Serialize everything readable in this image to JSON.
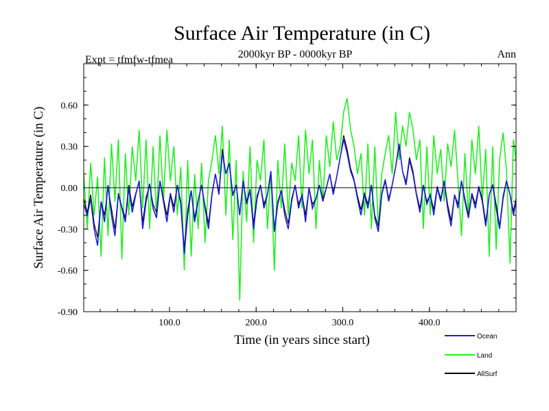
{
  "chart_data": {
    "type": "line",
    "title": "Surface Air Temperature (in C)",
    "subtitle": "2000kyr BP - 0000kyr BP",
    "left_label": "Expt = tfmfw-tfmea",
    "right_label": "Ann",
    "xlabel": "Time (in years since start)",
    "ylabel": "Surface Air Temperature (in C)",
    "xlim": [
      1,
      500
    ],
    "ylim": [
      -0.9,
      0.9
    ],
    "x_ticks": [
      100,
      200,
      300,
      400
    ],
    "x_tick_labels": [
      "100.0",
      "200.0",
      "300.0",
      "400.0"
    ],
    "y_ticks": [
      -0.9,
      -0.6,
      -0.3,
      0.0,
      0.3,
      0.6
    ],
    "y_tick_labels": [
      "-0.90",
      "-0.60",
      "-0.30",
      "0.00",
      "0.30",
      "0.60"
    ],
    "zero_line": true,
    "series": [
      {
        "name": "Ocean",
        "color": "#1a1adc",
        "x": [
          1,
          5,
          9,
          13,
          17,
          21,
          25,
          29,
          33,
          37,
          41,
          45,
          49,
          53,
          57,
          61,
          65,
          69,
          73,
          77,
          81,
          85,
          89,
          93,
          97,
          101,
          105,
          109,
          113,
          117,
          121,
          125,
          129,
          133,
          137,
          141,
          145,
          149,
          153,
          157,
          161,
          165,
          169,
          173,
          177,
          181,
          185,
          189,
          193,
          197,
          201,
          205,
          209,
          213,
          217,
          221,
          225,
          229,
          233,
          237,
          241,
          245,
          249,
          253,
          257,
          261,
          265,
          269,
          273,
          277,
          281,
          285,
          289,
          293,
          297,
          301,
          305,
          309,
          313,
          317,
          321,
          325,
          329,
          333,
          337,
          341,
          345,
          349,
          353,
          357,
          361,
          365,
          369,
          373,
          377,
          381,
          385,
          389,
          393,
          397,
          401,
          405,
          409,
          413,
          417,
          421,
          425,
          429,
          433,
          437,
          441,
          445,
          449,
          453,
          457,
          461,
          465,
          469,
          473,
          477,
          481,
          485,
          489,
          493,
          497,
          500
        ],
        "values": [
          -0.12,
          -0.2,
          -0.08,
          -0.3,
          -0.42,
          -0.1,
          -0.25,
          0.02,
          -0.2,
          -0.35,
          -0.05,
          -0.15,
          -0.25,
          0.0,
          -0.18,
          -0.05,
          0.05,
          -0.3,
          -0.1,
          0.03,
          -0.15,
          -0.22,
          0.05,
          -0.1,
          -0.25,
          -0.05,
          -0.18,
          0.02,
          -0.12,
          -0.48,
          -0.2,
          -0.02,
          -0.25,
          -0.1,
          0.02,
          -0.15,
          -0.3,
          -0.05,
          0.1,
          -0.05,
          0.25,
          0.1,
          0.18,
          -0.05,
          0.02,
          -0.2,
          0.05,
          -0.12,
          -0.02,
          -0.3,
          -0.08,
          0.02,
          -0.15,
          -0.05,
          0.12,
          -0.32,
          -0.12,
          -0.02,
          -0.2,
          -0.3,
          -0.1,
          0.02,
          -0.15,
          -0.05,
          -0.25,
          0.0,
          -0.15,
          -0.08,
          0.02,
          -0.1,
          0.0,
          0.1,
          -0.05,
          0.08,
          0.22,
          0.35,
          0.25,
          0.12,
          0.05,
          -0.08,
          -0.2,
          -0.05,
          -0.15,
          0.02,
          -0.22,
          -0.32,
          -0.05,
          0.05,
          -0.1,
          0.02,
          0.15,
          0.32,
          0.12,
          0.02,
          0.2,
          0.1,
          -0.05,
          -0.18,
          0.02,
          -0.12,
          -0.05,
          -0.2,
          0.0,
          -0.1,
          0.05,
          -0.15,
          -0.28,
          -0.05,
          -0.15,
          0.05,
          -0.1,
          -0.22,
          -0.05,
          -0.15,
          0.0,
          -0.1,
          -0.28,
          -0.05,
          0.02,
          -0.15,
          -0.3,
          -0.08,
          0.05,
          -0.05,
          -0.2,
          -0.1
        ]
      },
      {
        "name": "Land",
        "color": "#22ee22",
        "x": [
          1,
          5,
          9,
          13,
          17,
          21,
          25,
          29,
          33,
          37,
          41,
          45,
          49,
          53,
          57,
          61,
          65,
          69,
          73,
          77,
          81,
          85,
          89,
          93,
          97,
          101,
          105,
          109,
          113,
          117,
          121,
          125,
          129,
          133,
          137,
          141,
          145,
          149,
          153,
          157,
          161,
          165,
          169,
          173,
          177,
          181,
          185,
          189,
          193,
          197,
          201,
          205,
          209,
          213,
          217,
          221,
          225,
          229,
          233,
          237,
          241,
          245,
          249,
          253,
          257,
          261,
          265,
          269,
          273,
          277,
          281,
          285,
          289,
          293,
          297,
          301,
          305,
          309,
          313,
          317,
          321,
          325,
          329,
          333,
          337,
          341,
          345,
          349,
          353,
          357,
          361,
          365,
          369,
          373,
          377,
          381,
          385,
          389,
          393,
          397,
          401,
          405,
          409,
          413,
          417,
          421,
          425,
          429,
          433,
          437,
          441,
          445,
          449,
          453,
          457,
          461,
          465,
          469,
          473,
          477,
          481,
          485,
          489,
          493,
          497,
          500
        ],
        "values": [
          0.1,
          -0.3,
          0.18,
          -0.2,
          0.08,
          -0.5,
          0.22,
          -0.35,
          0.32,
          -0.1,
          0.35,
          -0.52,
          0.25,
          -0.2,
          0.3,
          0.05,
          0.42,
          -0.15,
          0.35,
          -0.3,
          0.3,
          -0.2,
          0.38,
          -0.1,
          0.42,
          0.05,
          0.3,
          -0.2,
          0.15,
          -0.6,
          0.2,
          -0.5,
          0.1,
          -0.3,
          0.18,
          -0.4,
          0.05,
          0.2,
          0.38,
          0.1,
          0.45,
          -0.2,
          0.35,
          -0.38,
          0.2,
          -0.82,
          0.12,
          -0.25,
          0.3,
          -0.4,
          0.2,
          0.05,
          0.35,
          -0.3,
          0.12,
          -0.6,
          0.2,
          -0.15,
          0.32,
          -0.2,
          0.18,
          0.05,
          0.38,
          -0.15,
          0.42,
          0.1,
          0.35,
          -0.3,
          0.2,
          -0.1,
          0.38,
          0.15,
          0.48,
          0.2,
          0.3,
          0.55,
          0.65,
          0.42,
          0.3,
          0.1,
          0.25,
          -0.2,
          0.32,
          -0.3,
          0.3,
          -0.3,
          0.1,
          0.25,
          0.38,
          0.1,
          0.55,
          0.2,
          0.45,
          0.3,
          0.55,
          0.42,
          0.2,
          0.35,
          -0.3,
          0.3,
          -0.2,
          0.38,
          0.1,
          0.28,
          -0.1,
          0.32,
          0.15,
          0.42,
          0.05,
          -0.35,
          0.25,
          -0.2,
          0.35,
          0.1,
          0.45,
          -0.1,
          0.28,
          -0.5,
          0.3,
          -0.45,
          0.2,
          0.4,
          0.12,
          -0.55,
          0.35,
          0.2
        ]
      },
      {
        "name": "AllSurf",
        "color": "#000000",
        "x": [
          1,
          5,
          9,
          13,
          17,
          21,
          25,
          29,
          33,
          37,
          41,
          45,
          49,
          53,
          57,
          61,
          65,
          69,
          73,
          77,
          81,
          85,
          89,
          93,
          97,
          101,
          105,
          109,
          113,
          117,
          121,
          125,
          129,
          133,
          137,
          141,
          145,
          149,
          153,
          157,
          161,
          165,
          169,
          173,
          177,
          181,
          185,
          189,
          193,
          197,
          201,
          205,
          209,
          213,
          217,
          221,
          225,
          229,
          233,
          237,
          241,
          245,
          249,
          253,
          257,
          261,
          265,
          269,
          273,
          277,
          281,
          285,
          289,
          293,
          297,
          301,
          305,
          309,
          313,
          317,
          321,
          325,
          329,
          333,
          337,
          341,
          345,
          349,
          353,
          357,
          361,
          365,
          369,
          373,
          377,
          381,
          385,
          389,
          393,
          397,
          401,
          405,
          409,
          413,
          417,
          421,
          425,
          429,
          433,
          437,
          441,
          445,
          449,
          453,
          457,
          461,
          465,
          469,
          473,
          477,
          481,
          485,
          489,
          493,
          497,
          500
        ],
        "values": [
          -0.08,
          -0.18,
          -0.05,
          -0.26,
          -0.36,
          -0.1,
          -0.2,
          0.0,
          -0.15,
          -0.3,
          -0.04,
          -0.14,
          -0.22,
          0.02,
          -0.14,
          -0.04,
          0.04,
          -0.25,
          -0.07,
          0.02,
          -0.12,
          -0.18,
          0.05,
          -0.08,
          -0.2,
          -0.04,
          -0.14,
          0.02,
          -0.1,
          -0.44,
          -0.16,
          -0.02,
          -0.22,
          -0.09,
          0.02,
          -0.13,
          -0.26,
          -0.04,
          0.1,
          -0.03,
          0.28,
          0.1,
          0.17,
          -0.06,
          0.02,
          -0.2,
          0.04,
          -0.1,
          -0.01,
          -0.26,
          -0.06,
          0.02,
          -0.12,
          -0.05,
          0.1,
          -0.3,
          -0.1,
          -0.02,
          -0.16,
          -0.26,
          -0.08,
          0.02,
          -0.12,
          -0.05,
          -0.2,
          0.0,
          -0.12,
          -0.08,
          0.02,
          -0.08,
          0.0,
          0.1,
          -0.03,
          0.08,
          0.22,
          0.38,
          0.28,
          0.14,
          0.06,
          -0.06,
          -0.16,
          -0.04,
          -0.12,
          0.02,
          -0.2,
          -0.28,
          -0.04,
          0.06,
          -0.08,
          0.02,
          0.15,
          0.3,
          0.12,
          0.04,
          0.22,
          0.12,
          -0.04,
          -0.15,
          0.02,
          -0.1,
          -0.05,
          -0.16,
          0.01,
          -0.08,
          0.05,
          -0.12,
          -0.24,
          -0.05,
          -0.12,
          0.05,
          -0.08,
          -0.2,
          -0.04,
          -0.12,
          0.01,
          -0.08,
          -0.25,
          -0.05,
          0.02,
          -0.12,
          -0.28,
          -0.06,
          0.05,
          -0.05,
          -0.17,
          -0.08
        ]
      }
    ],
    "legend_position": "bottom-right"
  }
}
